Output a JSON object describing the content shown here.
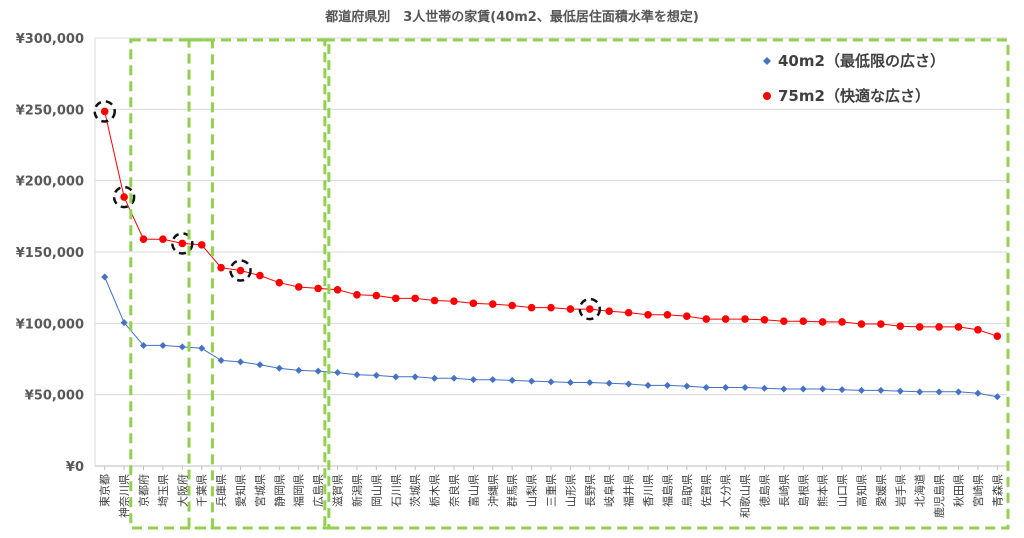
{
  "chart_data": {
    "type": "line",
    "title": "都道府県別　3人世帯の家賃(40m2、最低居住面積水準を想定)",
    "xlabel": "",
    "ylabel": "",
    "ylim": [
      0,
      300000
    ],
    "yticks": [
      "¥0",
      "¥50,000",
      "¥100,000",
      "¥150,000",
      "¥200,000",
      "¥250,000",
      "¥300,000"
    ],
    "grid": true,
    "legend_position": "top-right",
    "categories": [
      "東京都",
      "神奈川県",
      "京都府",
      "埼玉県",
      "大阪府",
      "千葉県",
      "兵庫県",
      "愛知県",
      "宮城県",
      "静岡県",
      "福岡県",
      "広島県",
      "滋賀県",
      "新潟県",
      "岡山県",
      "石川県",
      "茨城県",
      "栃木県",
      "奈良県",
      "富山県",
      "沖縄県",
      "群馬県",
      "山梨県",
      "三重県",
      "山形県",
      "長野県",
      "岐阜県",
      "福井県",
      "香川県",
      "福島県",
      "鳥取県",
      "佐賀県",
      "大分県",
      "和歌山県",
      "徳島県",
      "長崎県",
      "島根県",
      "熊本県",
      "山口県",
      "高知県",
      "愛媛県",
      "岩手県",
      "北海道",
      "鹿児島県",
      "秋田県",
      "宮崎県",
      "青森県"
    ],
    "series": [
      {
        "name": "40m2（最低限の広さ）",
        "color": "#4472C4",
        "marker": "diamond",
        "values": [
          132500,
          100500,
          84500,
          84500,
          83500,
          82500,
          74000,
          73000,
          71000,
          68500,
          67000,
          66500,
          65500,
          64000,
          63500,
          62500,
          62500,
          61500,
          61500,
          60500,
          60500,
          60000,
          59500,
          59000,
          58500,
          58500,
          58000,
          57500,
          56500,
          56500,
          56000,
          55000,
          55000,
          55000,
          54500,
          54000,
          54000,
          54000,
          53500,
          53000,
          53000,
          52500,
          52000,
          52000,
          52000,
          51000,
          48500
        ]
      },
      {
        "name": "75m2（快適な広さ）",
        "color": "#FF0000",
        "marker": "circle",
        "values": [
          248500,
          188500,
          159000,
          159000,
          156000,
          155000,
          139000,
          137000,
          133500,
          128500,
          125500,
          124500,
          123500,
          120000,
          119500,
          117500,
          117500,
          116000,
          115500,
          114000,
          113500,
          112500,
          111000,
          111000,
          110000,
          110000,
          108500,
          107500,
          106000,
          106000,
          105000,
          103000,
          103000,
          103000,
          102500,
          101500,
          101500,
          101000,
          101000,
          99500,
          99500,
          98000,
          97500,
          97500,
          97500,
          95500,
          91000
        ]
      }
    ],
    "highlighted_points": [
      {
        "category": "東京都",
        "series": 1
      },
      {
        "category": "神奈川県",
        "series": 1
      },
      {
        "category": "大阪府",
        "series": 1
      },
      {
        "category": "愛知県",
        "series": 1
      },
      {
        "category": "長野県",
        "series": 1
      }
    ],
    "group_boxes": [
      {
        "from": "京都府",
        "to": "千葉県"
      },
      {
        "from": "千葉県",
        "to": "広島県"
      },
      {
        "from": "滋賀県",
        "to": "青森県"
      }
    ]
  }
}
